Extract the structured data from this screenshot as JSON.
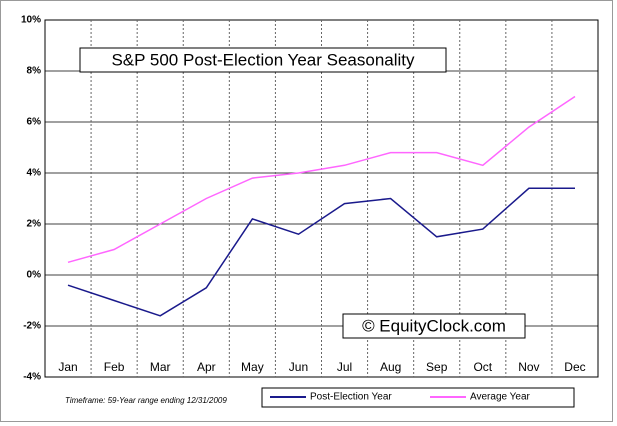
{
  "chart_data": {
    "type": "line",
    "title": "S&P 500 Post-Election Year Seasonality",
    "watermark": "© EquityClock.com",
    "note": "Timeframe: 59-Year range ending 12/31/2009",
    "categories": [
      "Jan",
      "Feb",
      "Mar",
      "Apr",
      "May",
      "Jun",
      "Jul",
      "Aug",
      "Sep",
      "Oct",
      "Nov",
      "Dec"
    ],
    "series": [
      {
        "name": "Post-Election Year",
        "color": "#1a1a8c",
        "values": [
          -0.4,
          -1.0,
          -1.6,
          -0.5,
          2.2,
          1.6,
          2.8,
          3.0,
          1.5,
          1.8,
          3.4,
          3.4
        ]
      },
      {
        "name": "Average Year",
        "color": "#ff66ff",
        "values": [
          0.5,
          1.0,
          2.0,
          3.0,
          3.8,
          4.0,
          4.3,
          4.8,
          4.8,
          4.3,
          5.8,
          7.0
        ]
      }
    ],
    "ylim": [
      -4,
      10
    ],
    "yticks": [
      {
        "value": -4,
        "label": "-4%"
      },
      {
        "value": -2,
        "label": "-2%"
      },
      {
        "value": 0,
        "label": "0%"
      },
      {
        "value": 2,
        "label": "2%"
      },
      {
        "value": 4,
        "label": "4%"
      },
      {
        "value": 6,
        "label": "6%"
      },
      {
        "value": 8,
        "label": "8%"
      },
      {
        "value": 10,
        "label": "10%"
      }
    ],
    "grid": true
  }
}
